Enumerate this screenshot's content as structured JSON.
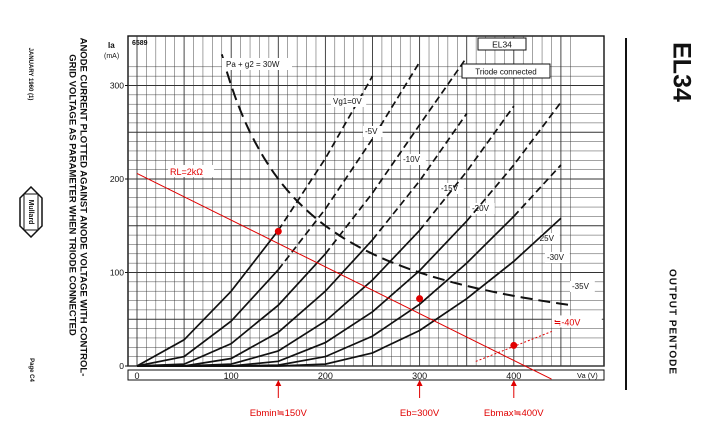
{
  "sheet": {
    "left_margin_lines": [
      "ANODE CURRENT PLOTTED AGAINST ANODE VOLTAGE WITH CONTROL-",
      "GRID VOLTAGE AS PARAMETER WHEN TRIODE CONNECTED"
    ],
    "date": "JANUARY 1960 (1)",
    "logo_text": "Mullard",
    "page_ref": "Page C4",
    "tube_name": "EL34",
    "tube_type": "OUTPUT PENTODE"
  },
  "chart_data": {
    "type": "line",
    "sheet_code": "6589",
    "title": "EL34",
    "subtitle": "Triode connected",
    "ylabel_symbol": "Ia",
    "ylabel_unit": "(mA)",
    "xlabel": "Va (V)",
    "xlim": [
      0,
      460
    ],
    "ylim": [
      0,
      320
    ],
    "x_ticks": [
      0,
      100,
      200,
      300,
      400
    ],
    "y_ticks": [
      0,
      100,
      200,
      300
    ],
    "power_curve": {
      "label": "Pa + g2 = 30W",
      "watts": 30,
      "x_range": [
        80,
        460
      ]
    },
    "grid_curves": {
      "x": [
        0,
        50,
        100,
        150,
        200,
        250,
        300,
        350,
        400,
        450
      ],
      "series": [
        {
          "name": "Vg1=0V",
          "values": [
            0,
            28,
            80,
            145,
            222,
            310,
            null,
            null,
            null,
            null
          ]
        },
        {
          "name": "-5V",
          "values": [
            0,
            10,
            48,
            103,
            168,
            243,
            325,
            null,
            null,
            null
          ]
        },
        {
          "name": "-10V",
          "values": [
            0,
            2,
            24,
            65,
            120,
            185,
            258,
            330,
            null,
            null
          ]
        },
        {
          "name": "-15V",
          "values": [
            0,
            0,
            8,
            36,
            80,
            135,
            198,
            270,
            null,
            null
          ]
        },
        {
          "name": "-20V",
          "values": [
            0,
            0,
            2,
            16,
            48,
            92,
            145,
            208,
            278,
            null
          ]
        },
        {
          "name": "-25V",
          "values": [
            0,
            0,
            0,
            5,
            25,
            58,
            102,
            155,
            215,
            282
          ]
        },
        {
          "name": "-30V",
          "values": [
            0,
            0,
            0,
            1,
            10,
            32,
            66,
            110,
            160,
            215
          ]
        },
        {
          "name": "-35V",
          "values": [
            0,
            0,
            0,
            0,
            2,
            14,
            38,
            72,
            112,
            158
          ]
        }
      ]
    },
    "load_line": {
      "label": "RL=2kΩ",
      "x": [
        0,
        440
      ],
      "y": [
        206,
        -14
      ],
      "color": "#e00000"
    },
    "operating_points": [
      {
        "x": 150,
        "y": 144,
        "label": "Ebmin≒150V"
      },
      {
        "x": 300,
        "y": 72,
        "label": "Eb=300V"
      },
      {
        "x": 400,
        "y": 22,
        "label": "Ebmax≒400V"
      }
    ],
    "bias_annotation": "≒-40V",
    "colors": {
      "curves": "#111111",
      "grid": "#333333",
      "annotation": "#e00000"
    }
  }
}
